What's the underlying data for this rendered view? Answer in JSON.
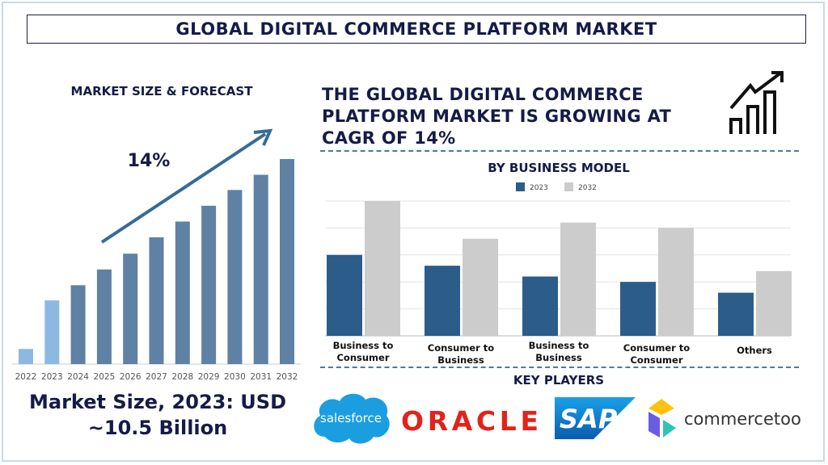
{
  "title": "GLOBAL DIGITAL COMMERCE PLATFORM MARKET",
  "left_panel": {
    "heading": "MARKET SIZE & FORECAST",
    "market_size_line1": "Market Size, 2023: USD",
    "market_size_line2": "~10.5 Billion"
  },
  "headline": "THE GLOBAL DIGITAL COMMERCE PLATFORM MARKET IS GROWING AT CAGR OF 14%",
  "key_players": {
    "heading": "KEY PLAYERS",
    "logos": [
      "salesforce",
      "ORACLE",
      "SAP",
      "commercetools"
    ]
  },
  "icons": {
    "growth": "growth-chart-arrow-icon"
  },
  "chart_data": [
    {
      "type": "bar",
      "title": "MARKET SIZE & FORECAST",
      "categories": [
        "2022",
        "2023",
        "2024",
        "2025",
        "2026",
        "2027",
        "2028",
        "2029",
        "2030",
        "2031",
        "2032"
      ],
      "values": [
        2.5,
        10.5,
        13.0,
        15.6,
        18.2,
        20.9,
        23.5,
        26.1,
        28.7,
        31.2,
        33.8
      ],
      "annotation": "14%",
      "colors": {
        "historic": "#8db8e0",
        "forecast": "#5f81a3"
      },
      "grid": false
    },
    {
      "type": "bar",
      "title": "BY BUSINESS MODEL",
      "categories": [
        "Business to Consumer",
        "Consumer to Business",
        "Business to Business",
        "Consumer to Consumer",
        "Others"
      ],
      "series": [
        {
          "name": "2023",
          "values": [
            3.0,
            2.6,
            2.2,
            2.0,
            1.6
          ],
          "color": "#2b5c8a"
        },
        {
          "name": "2032",
          "values": [
            5.0,
            3.6,
            4.2,
            4.0,
            2.4
          ],
          "color": "#cccccc"
        }
      ],
      "ylim": [
        0,
        5
      ],
      "grid": true,
      "legend": "top"
    }
  ]
}
